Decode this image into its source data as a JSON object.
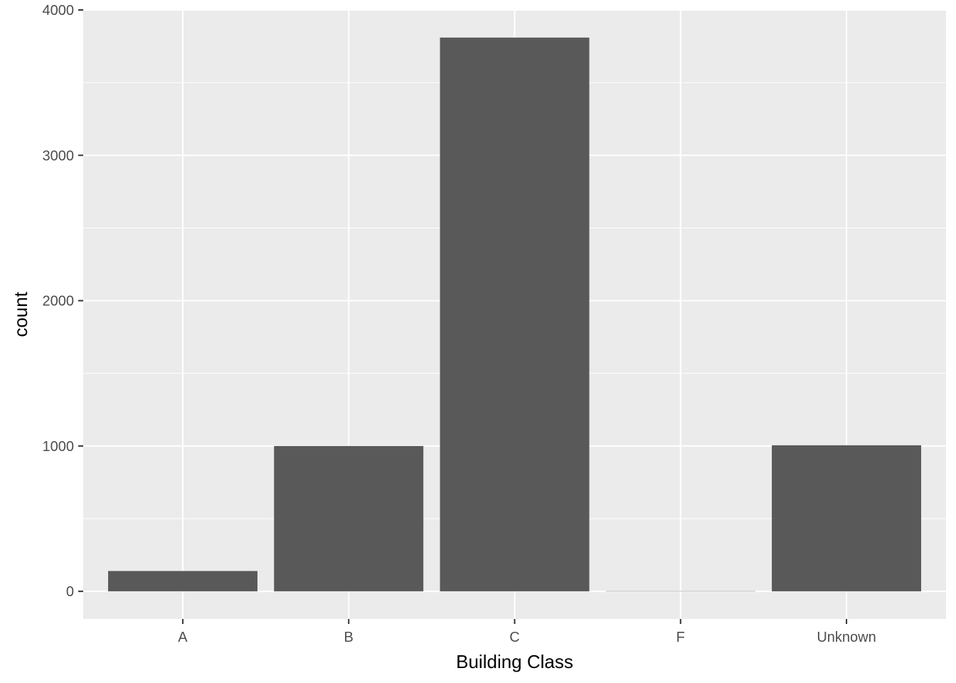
{
  "chart_data": {
    "type": "bar",
    "title": "",
    "xlabel": "Building Class",
    "ylabel": "count",
    "categories": [
      "A",
      "B",
      "C",
      "F",
      "Unknown"
    ],
    "values": [
      140,
      1000,
      3810,
      2,
      1005
    ],
    "ylim": [
      -190,
      4000
    ],
    "yticks": [
      0,
      1000,
      2000,
      3000,
      4000
    ],
    "ytick_labels": [
      "0",
      "1000",
      "2000",
      "3000",
      "4000"
    ],
    "grid": true,
    "legend": "none",
    "colors": {
      "bar": "#595959",
      "panel": "#ebebeb",
      "grid": "#ffffff",
      "tick": "#333333"
    }
  }
}
